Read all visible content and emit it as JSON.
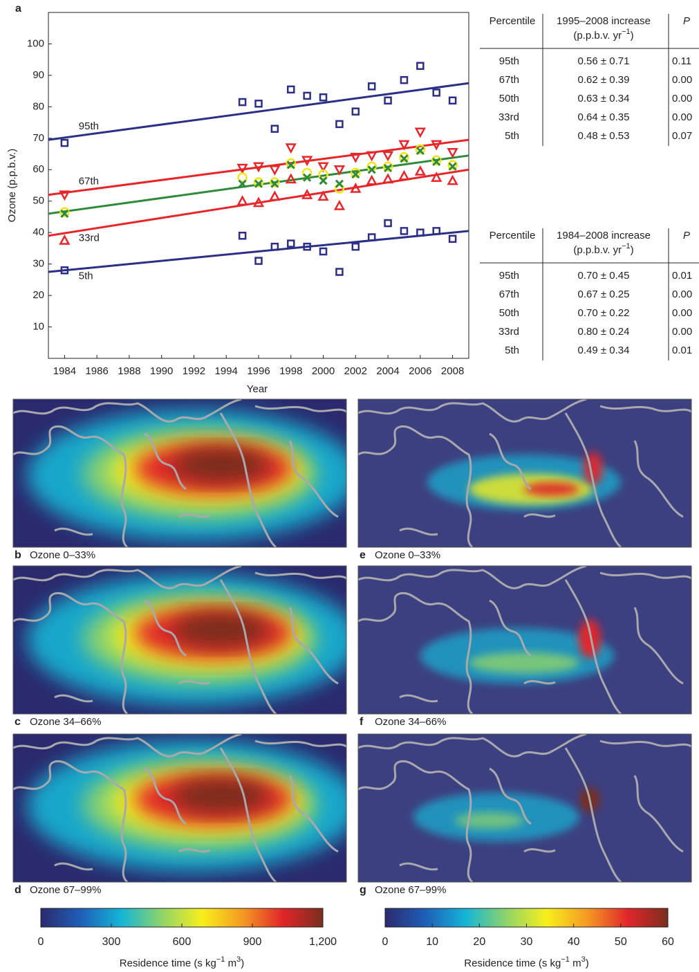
{
  "chart_data": [
    {
      "type": "scatter",
      "panel": "a",
      "xlabel": "Year",
      "ylabel": "Ozone (p.p.b.v.)",
      "x": [
        1984,
        1995,
        1996,
        1997,
        1998,
        1999,
        2000,
        2001,
        2002,
        2003,
        2004,
        2005,
        2006,
        2007,
        2008
      ],
      "xlim": [
        1983,
        2009
      ],
      "xticks": [
        1984,
        1986,
        1988,
        1990,
        1992,
        1994,
        1996,
        1998,
        2000,
        2002,
        2004,
        2006,
        2008
      ],
      "ylim": [
        0,
        110
      ],
      "yticks": [
        10,
        20,
        30,
        40,
        50,
        60,
        70,
        80,
        90,
        100
      ],
      "fit_x": [
        1983,
        2009
      ],
      "series": [
        {
          "name": "95th",
          "color": "#2b2f88",
          "marker": "square",
          "values": [
            68.5,
            81.5,
            81,
            73,
            85.5,
            83.5,
            83,
            74.5,
            78.5,
            86.5,
            82,
            88.5,
            93,
            84.5,
            82
          ],
          "fit": [
            69.5,
            87.5
          ]
        },
        {
          "name": "67th",
          "color": "#e8262a",
          "marker": "triangle-down",
          "values": [
            52,
            60.5,
            61,
            60,
            67,
            63,
            61,
            60,
            64,
            64.5,
            64.5,
            68,
            72,
            68,
            65.5
          ],
          "fit": [
            52,
            69.5
          ]
        },
        {
          "name": "33rd",
          "color": "#e8262a",
          "marker": "triangle-up",
          "values": [
            37.5,
            50,
            49.5,
            51.5,
            57,
            52,
            51.5,
            48.5,
            54,
            56.5,
            57,
            58,
            59.5,
            57.5,
            56.5
          ],
          "fit": [
            39,
            60
          ]
        },
        {
          "name": "5th",
          "color": "#2b2f88",
          "marker": "square",
          "values": [
            28,
            39,
            31,
            35.5,
            36.5,
            35.5,
            34,
            27.5,
            35.5,
            38.5,
            43,
            40.5,
            40,
            40.5,
            38
          ],
          "fit": [
            27.5,
            40.5
          ]
        },
        {
          "color": "#f2e51b",
          "marker": "circle",
          "values": [
            46.5,
            57.5,
            56,
            56,
            62,
            59,
            58.5,
            54,
            59,
            61,
            61,
            64,
            66.5,
            63,
            61.5
          ]
        },
        {
          "color": "#2e8b3a",
          "marker": "cross",
          "values": [
            46,
            55.5,
            55.5,
            55.5,
            61.5,
            57.5,
            56.5,
            55.5,
            58.5,
            60,
            60.5,
            63.5,
            66,
            62.5,
            61
          ],
          "fit": [
            46,
            64.5
          ]
        }
      ]
    },
    {
      "type": "colorbar",
      "xlim": [
        0,
        1200
      ],
      "xticks": [
        0,
        300,
        600,
        900,
        {
          "value": 1200,
          "label": "1,200"
        }
      ],
      "xlabel": {
        "pre": "Residence time (s kg",
        "sup1": "−1",
        "mid": " m",
        "sup2": "3",
        "post": ")"
      },
      "colors": [
        "#2b2a6e",
        "#1f5fb8",
        "#14b5d6",
        "#8fd46a",
        "#f7ef1c",
        "#f49b22",
        "#e1262a",
        "#7a2e1e"
      ]
    },
    {
      "type": "colorbar",
      "xlim": [
        0,
        60
      ],
      "xticks": [
        0,
        10,
        20,
        30,
        40,
        50,
        60
      ],
      "xlabel": {
        "pre": "Residence time (s kg",
        "sup1": "−1",
        "mid": " m",
        "sup2": "3",
        "post": ")"
      },
      "colors": [
        "#2b2a6e",
        "#1f5fb8",
        "#14b5d6",
        "#8fd46a",
        "#f7ef1c",
        "#f49b22",
        "#e1262a",
        "#7a2e1e"
      ]
    }
  ],
  "tables": [
    {
      "header": {
        "percentile": "Percentile",
        "increase": "1995–2008 increase",
        "unit": {
          "pre": "(p.p.b.v. yr",
          "sup": "−1",
          "post": ")"
        },
        "p": "P"
      },
      "rows": [
        [
          "95th",
          "0.56 ± 0.71",
          "0.11"
        ],
        [
          "67th",
          "0.62 ± 0.39",
          "0.00"
        ],
        [
          "50th",
          "0.63 ± 0.34",
          "0.00"
        ],
        [
          "33rd",
          "0.64 ± 0.35",
          "0.00"
        ],
        [
          "5th",
          "0.48 ± 0.53",
          "0.07"
        ]
      ]
    },
    {
      "header": {
        "percentile": "Percentile",
        "increase": "1984–2008 increase",
        "unit": {
          "pre": "(p.p.b.v. yr",
          "sup": "−1",
          "post": ")"
        },
        "p": "P"
      },
      "rows": [
        [
          "95th",
          "0.70 ± 0.45",
          "0.01"
        ],
        [
          "67th",
          "0.67 ± 0.25",
          "0.00"
        ],
        [
          "50th",
          "0.70 ± 0.22",
          "0.00"
        ],
        [
          "33rd",
          "0.80 ± 0.24",
          "0.00"
        ],
        [
          "5th",
          "0.49 ± 0.34",
          "0.01"
        ]
      ]
    }
  ],
  "maps": [
    {
      "letter": "b",
      "label": "Ozone 0–33%"
    },
    {
      "letter": "e",
      "label": "Ozone 0–33%"
    },
    {
      "letter": "c",
      "label": "Ozone 34–66%"
    },
    {
      "letter": "f",
      "label": "Ozone 34–66%"
    },
    {
      "letter": "d",
      "label": "Ozone 67–99%"
    },
    {
      "letter": "g",
      "label": "Ozone 67–99%"
    }
  ]
}
